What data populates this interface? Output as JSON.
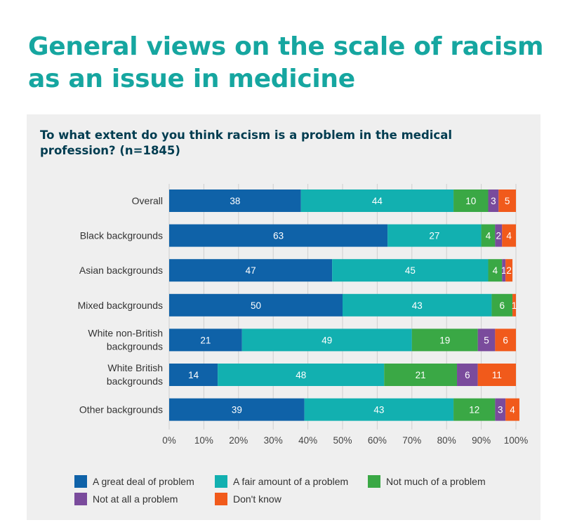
{
  "page": {
    "title": "General views on the scale of racism as an issue in medicine",
    "question": "To what extent do you think racism is a problem in the medical profession? (n=1845)"
  },
  "chart_data": {
    "type": "bar",
    "orientation": "horizontal",
    "stacked": true,
    "categories": [
      "Overall",
      "Black backgrounds",
      "Asian backgrounds",
      "Mixed backgrounds",
      "White non-British backgrounds",
      "White British backgrounds",
      "Other backgrounds"
    ],
    "category_lines": [
      [
        "Overall"
      ],
      [
        "Black backgrounds"
      ],
      [
        "Asian backgrounds"
      ],
      [
        "Mixed backgrounds"
      ],
      [
        "White non-British",
        "backgrounds"
      ],
      [
        "White British",
        "backgrounds"
      ],
      [
        "Other backgrounds"
      ]
    ],
    "series": [
      {
        "name": "A great deal of problem",
        "color": "#0f62a8",
        "values": [
          38,
          63,
          47,
          50,
          21,
          14,
          39
        ]
      },
      {
        "name": "A fair amount of a problem",
        "color": "#12b0b0",
        "values": [
          44,
          27,
          45,
          43,
          49,
          48,
          43
        ]
      },
      {
        "name": "Not much of a problem",
        "color": "#3aa845",
        "values": [
          10,
          4,
          4,
          6,
          19,
          21,
          12
        ]
      },
      {
        "name": "Not at all a problem",
        "color": "#7a4b9c",
        "values": [
          3,
          2,
          1,
          0,
          5,
          6,
          3
        ]
      },
      {
        "name": "Don't know",
        "color": "#f15a1b",
        "values": [
          5,
          4,
          2,
          1,
          6,
          11,
          4
        ]
      }
    ],
    "xlim": [
      0,
      100
    ],
    "xticks": [
      "0%",
      "10%",
      "20%",
      "30%",
      "40%",
      "50%",
      "60%",
      "70%",
      "80%",
      "90%",
      "100%"
    ],
    "grid": true,
    "legend_position": "bottom"
  }
}
